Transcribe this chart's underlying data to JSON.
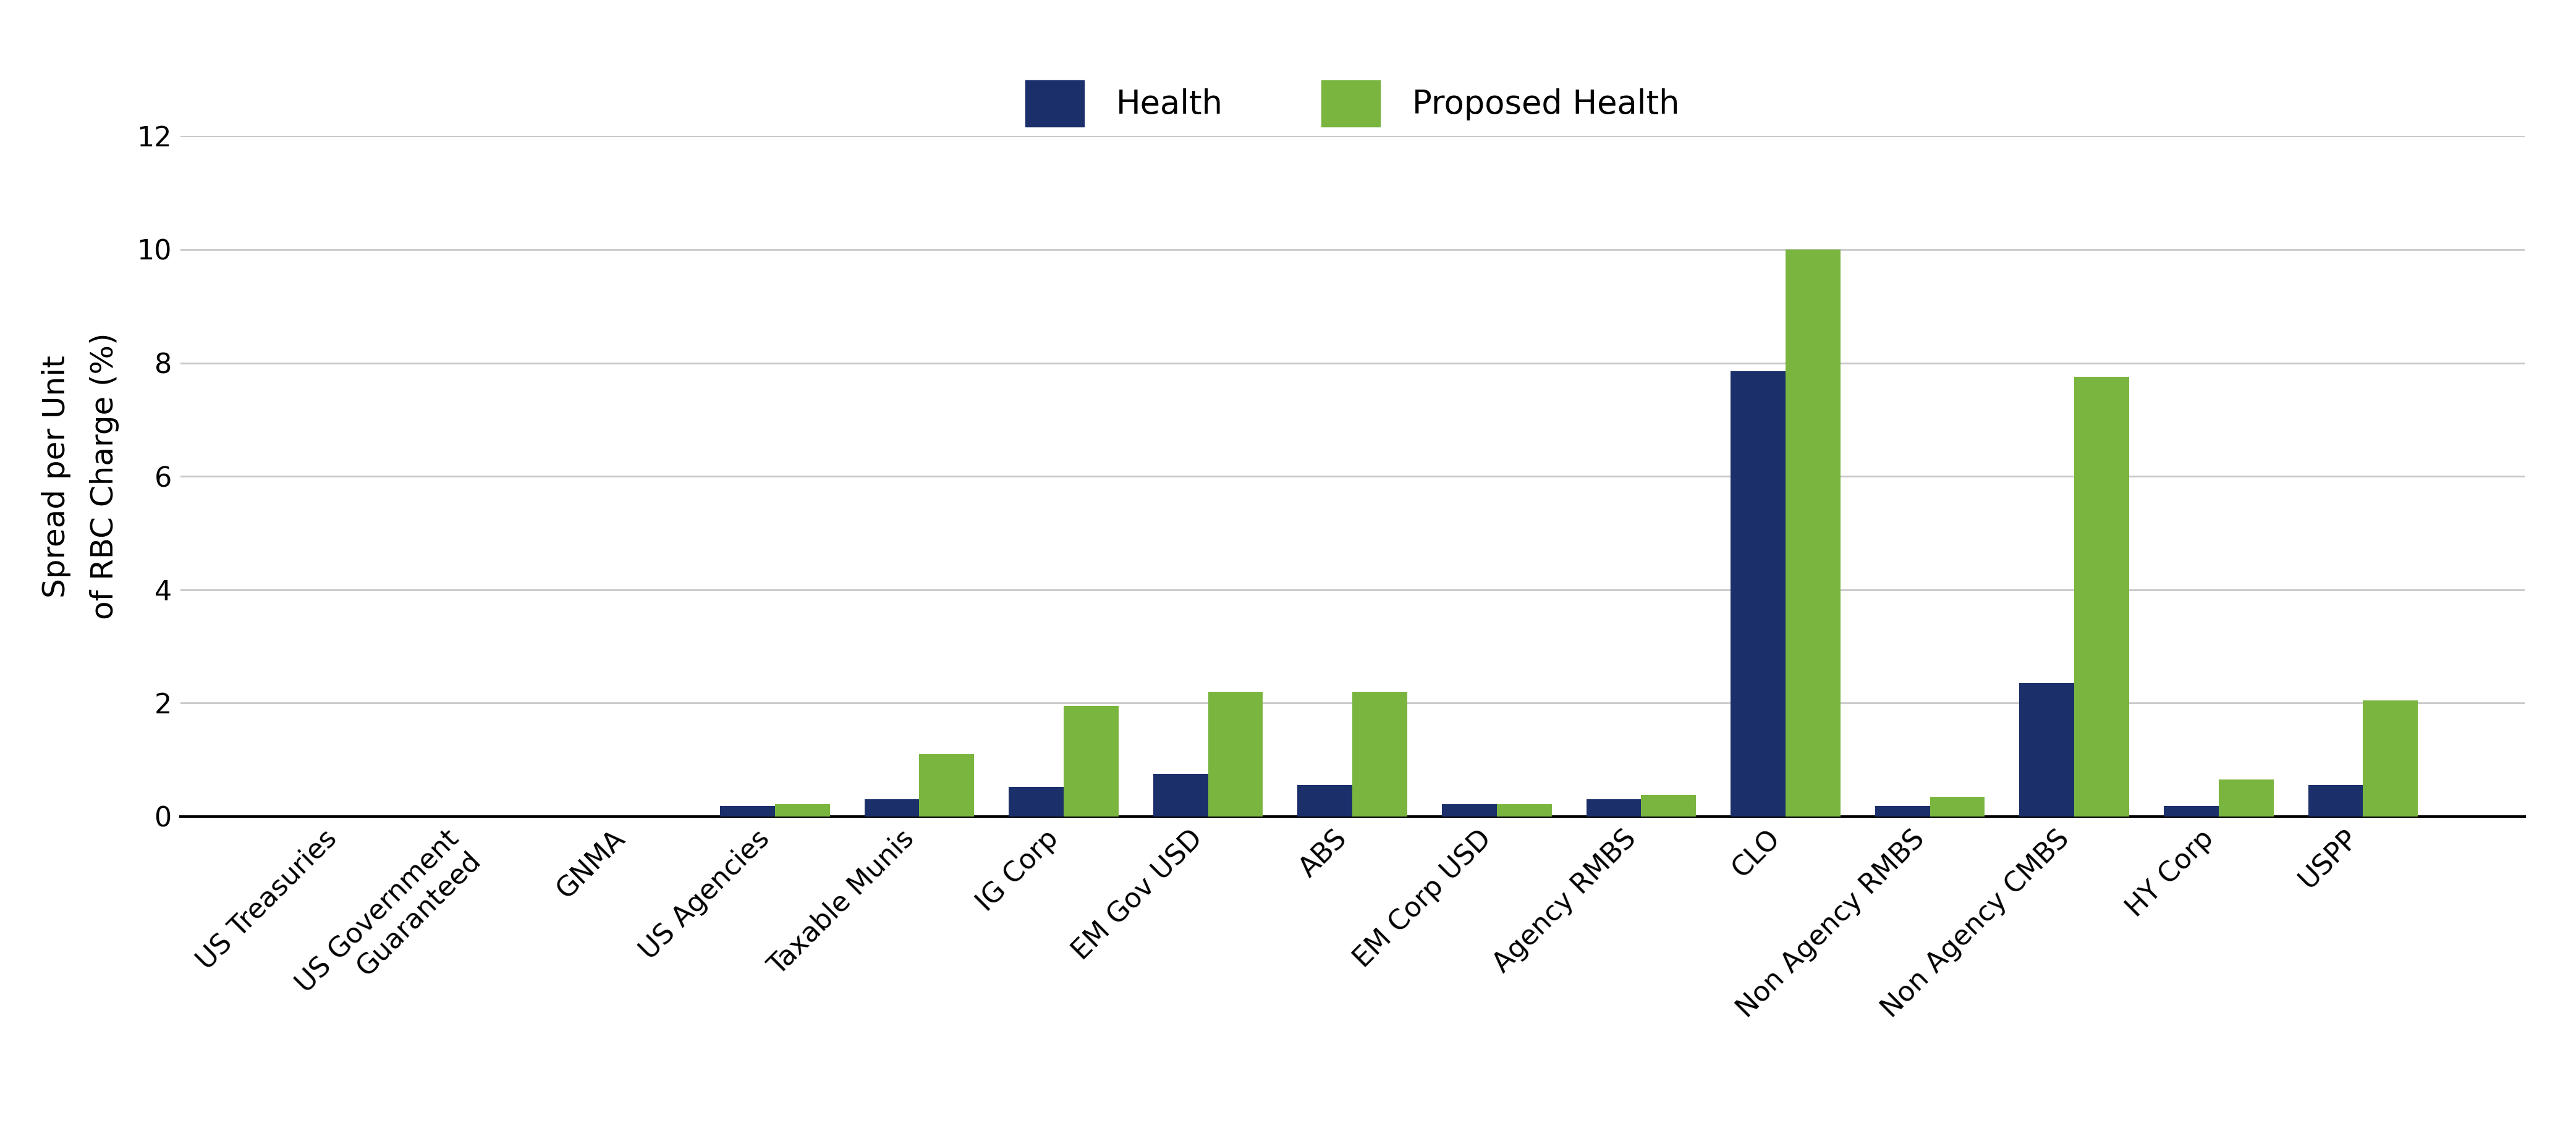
{
  "categories": [
    "US Treasuries",
    "US Government\nGuaranteed",
    "GNMA",
    "US Agencies",
    "Taxable Munis",
    "IG Corp",
    "EM Gov USD",
    "ABS",
    "EM Corp USD",
    "Agency RMBS",
    "CLO",
    "Non Agency RMBS",
    "Non Agency CMBS",
    "HY Corp",
    "USPP"
  ],
  "health": [
    0.0,
    0.0,
    0.0,
    0.18,
    0.3,
    0.52,
    0.75,
    0.55,
    0.22,
    0.3,
    7.85,
    0.18,
    2.35,
    0.18,
    0.55
  ],
  "proposed_health": [
    0.0,
    0.0,
    0.0,
    0.22,
    1.1,
    1.95,
    2.2,
    2.2,
    0.22,
    0.38,
    10.0,
    0.35,
    7.75,
    0.65,
    2.05
  ],
  "health_color": "#1b2f6b",
  "proposed_health_color": "#7ab540",
  "ylabel": "Spread per Unit\nof RBC Charge (%)",
  "ylim": [
    0,
    12
  ],
  "yticks": [
    0,
    2,
    4,
    6,
    8,
    10,
    12
  ],
  "legend_health": "Health",
  "legend_proposed": "Proposed Health",
  "background_color": "#ffffff",
  "grid_color": "#c8c8c8",
  "bar_width": 0.38,
  "axis_fontsize": 36,
  "tick_fontsize": 32,
  "legend_fontsize": 38,
  "ylabel_fontsize": 36
}
